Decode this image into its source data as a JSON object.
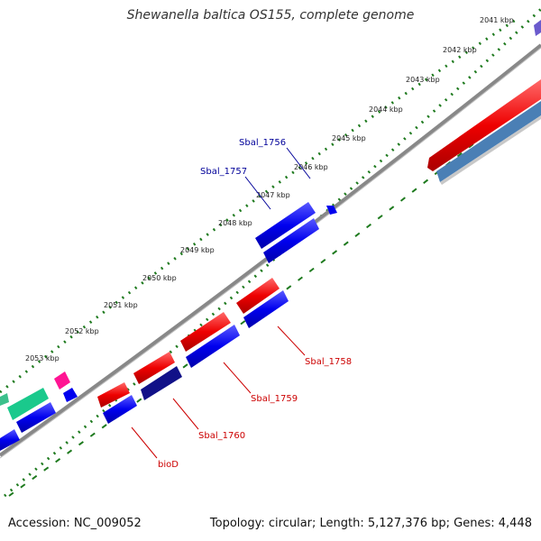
{
  "title": "Shewanella baltica OS155, complete genome",
  "accession": "Accession: NC_009052",
  "summary": "Topology: circular; Length: 5,127,376 bp; Genes: 4,448",
  "ticks": [
    "2041 kbp",
    "2042 kbp",
    "2043 kbp",
    "2044 kbp",
    "2045 kbp",
    "2046 kbp",
    "2047 kbp",
    "2048 kbp",
    "2049 kbp",
    "2050 kbp",
    "2051 kbp",
    "2052 kbp",
    "2053 kbp"
  ],
  "gene_labels": {
    "forward": [
      "Sbal_1756",
      "Sbal_1757"
    ],
    "reverse": [
      "Sbal_1758",
      "Sbal_1759",
      "Sbal_1760",
      "bioD"
    ]
  },
  "colors": {
    "forward_gene": "#0000ee",
    "reverse_gene": "#ee0000",
    "forward_label": "#000099",
    "reverse_label": "#cc0000",
    "backbone": "#888888",
    "tick": "#1e7a1e"
  }
}
